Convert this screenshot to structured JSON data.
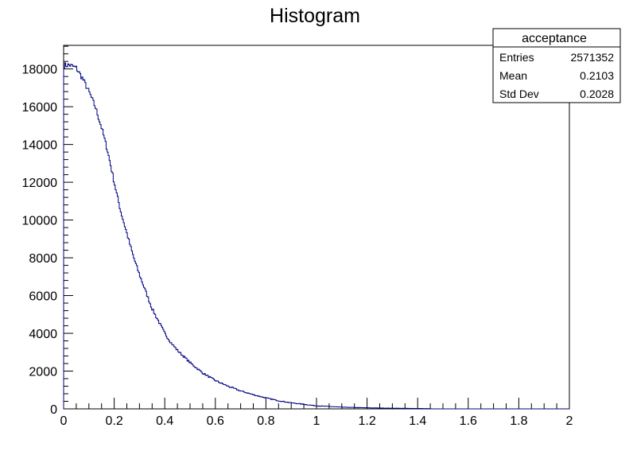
{
  "chart_data": {
    "type": "histogram",
    "title": "Histogram",
    "xlim": [
      0,
      2
    ],
    "ylim": [
      0,
      19250
    ],
    "x_ticks": [
      "0",
      "0.2",
      "0.4",
      "0.6",
      "0.8",
      "1",
      "1.2",
      "1.4",
      "1.6",
      "1.8",
      "2"
    ],
    "x_tick_values": [
      0,
      0.2,
      0.4,
      0.6,
      0.8,
      1.0,
      1.2,
      1.4,
      1.6,
      1.8,
      2.0
    ],
    "y_ticks": [
      "0",
      "2000",
      "4000",
      "6000",
      "8000",
      "10000",
      "12000",
      "14000",
      "16000",
      "18000"
    ],
    "y_tick_values": [
      0,
      2000,
      4000,
      6000,
      8000,
      10000,
      12000,
      14000,
      16000,
      18000
    ],
    "line_color": "#000080",
    "series": [
      {
        "x": [
          0.0,
          0.025,
          0.05,
          0.075,
          0.1,
          0.125,
          0.15,
          0.175,
          0.2,
          0.225,
          0.25,
          0.275,
          0.3,
          0.325,
          0.35,
          0.375,
          0.4,
          0.425,
          0.45,
          0.5,
          0.55,
          0.6,
          0.65,
          0.7,
          0.75,
          0.8,
          0.85,
          0.9,
          0.95,
          1.0,
          1.1,
          1.2,
          1.3,
          1.4,
          1.45
        ],
        "y": [
          18200,
          18200,
          18050,
          17500,
          16800,
          16000,
          14900,
          13600,
          12000,
          10500,
          9300,
          8100,
          7100,
          6200,
          5300,
          4650,
          4000,
          3500,
          3100,
          2450,
          1900,
          1500,
          1200,
          950,
          750,
          580,
          430,
          320,
          240,
          160,
          90,
          55,
          35,
          20,
          10
        ]
      }
    ]
  },
  "stats_box": {
    "name": "acceptance",
    "rows": [
      {
        "label": "Entries",
        "value": "2571352"
      },
      {
        "label": "Mean",
        "value": "0.2103"
      },
      {
        "label": "Std Dev",
        "value": "0.2028"
      }
    ]
  }
}
